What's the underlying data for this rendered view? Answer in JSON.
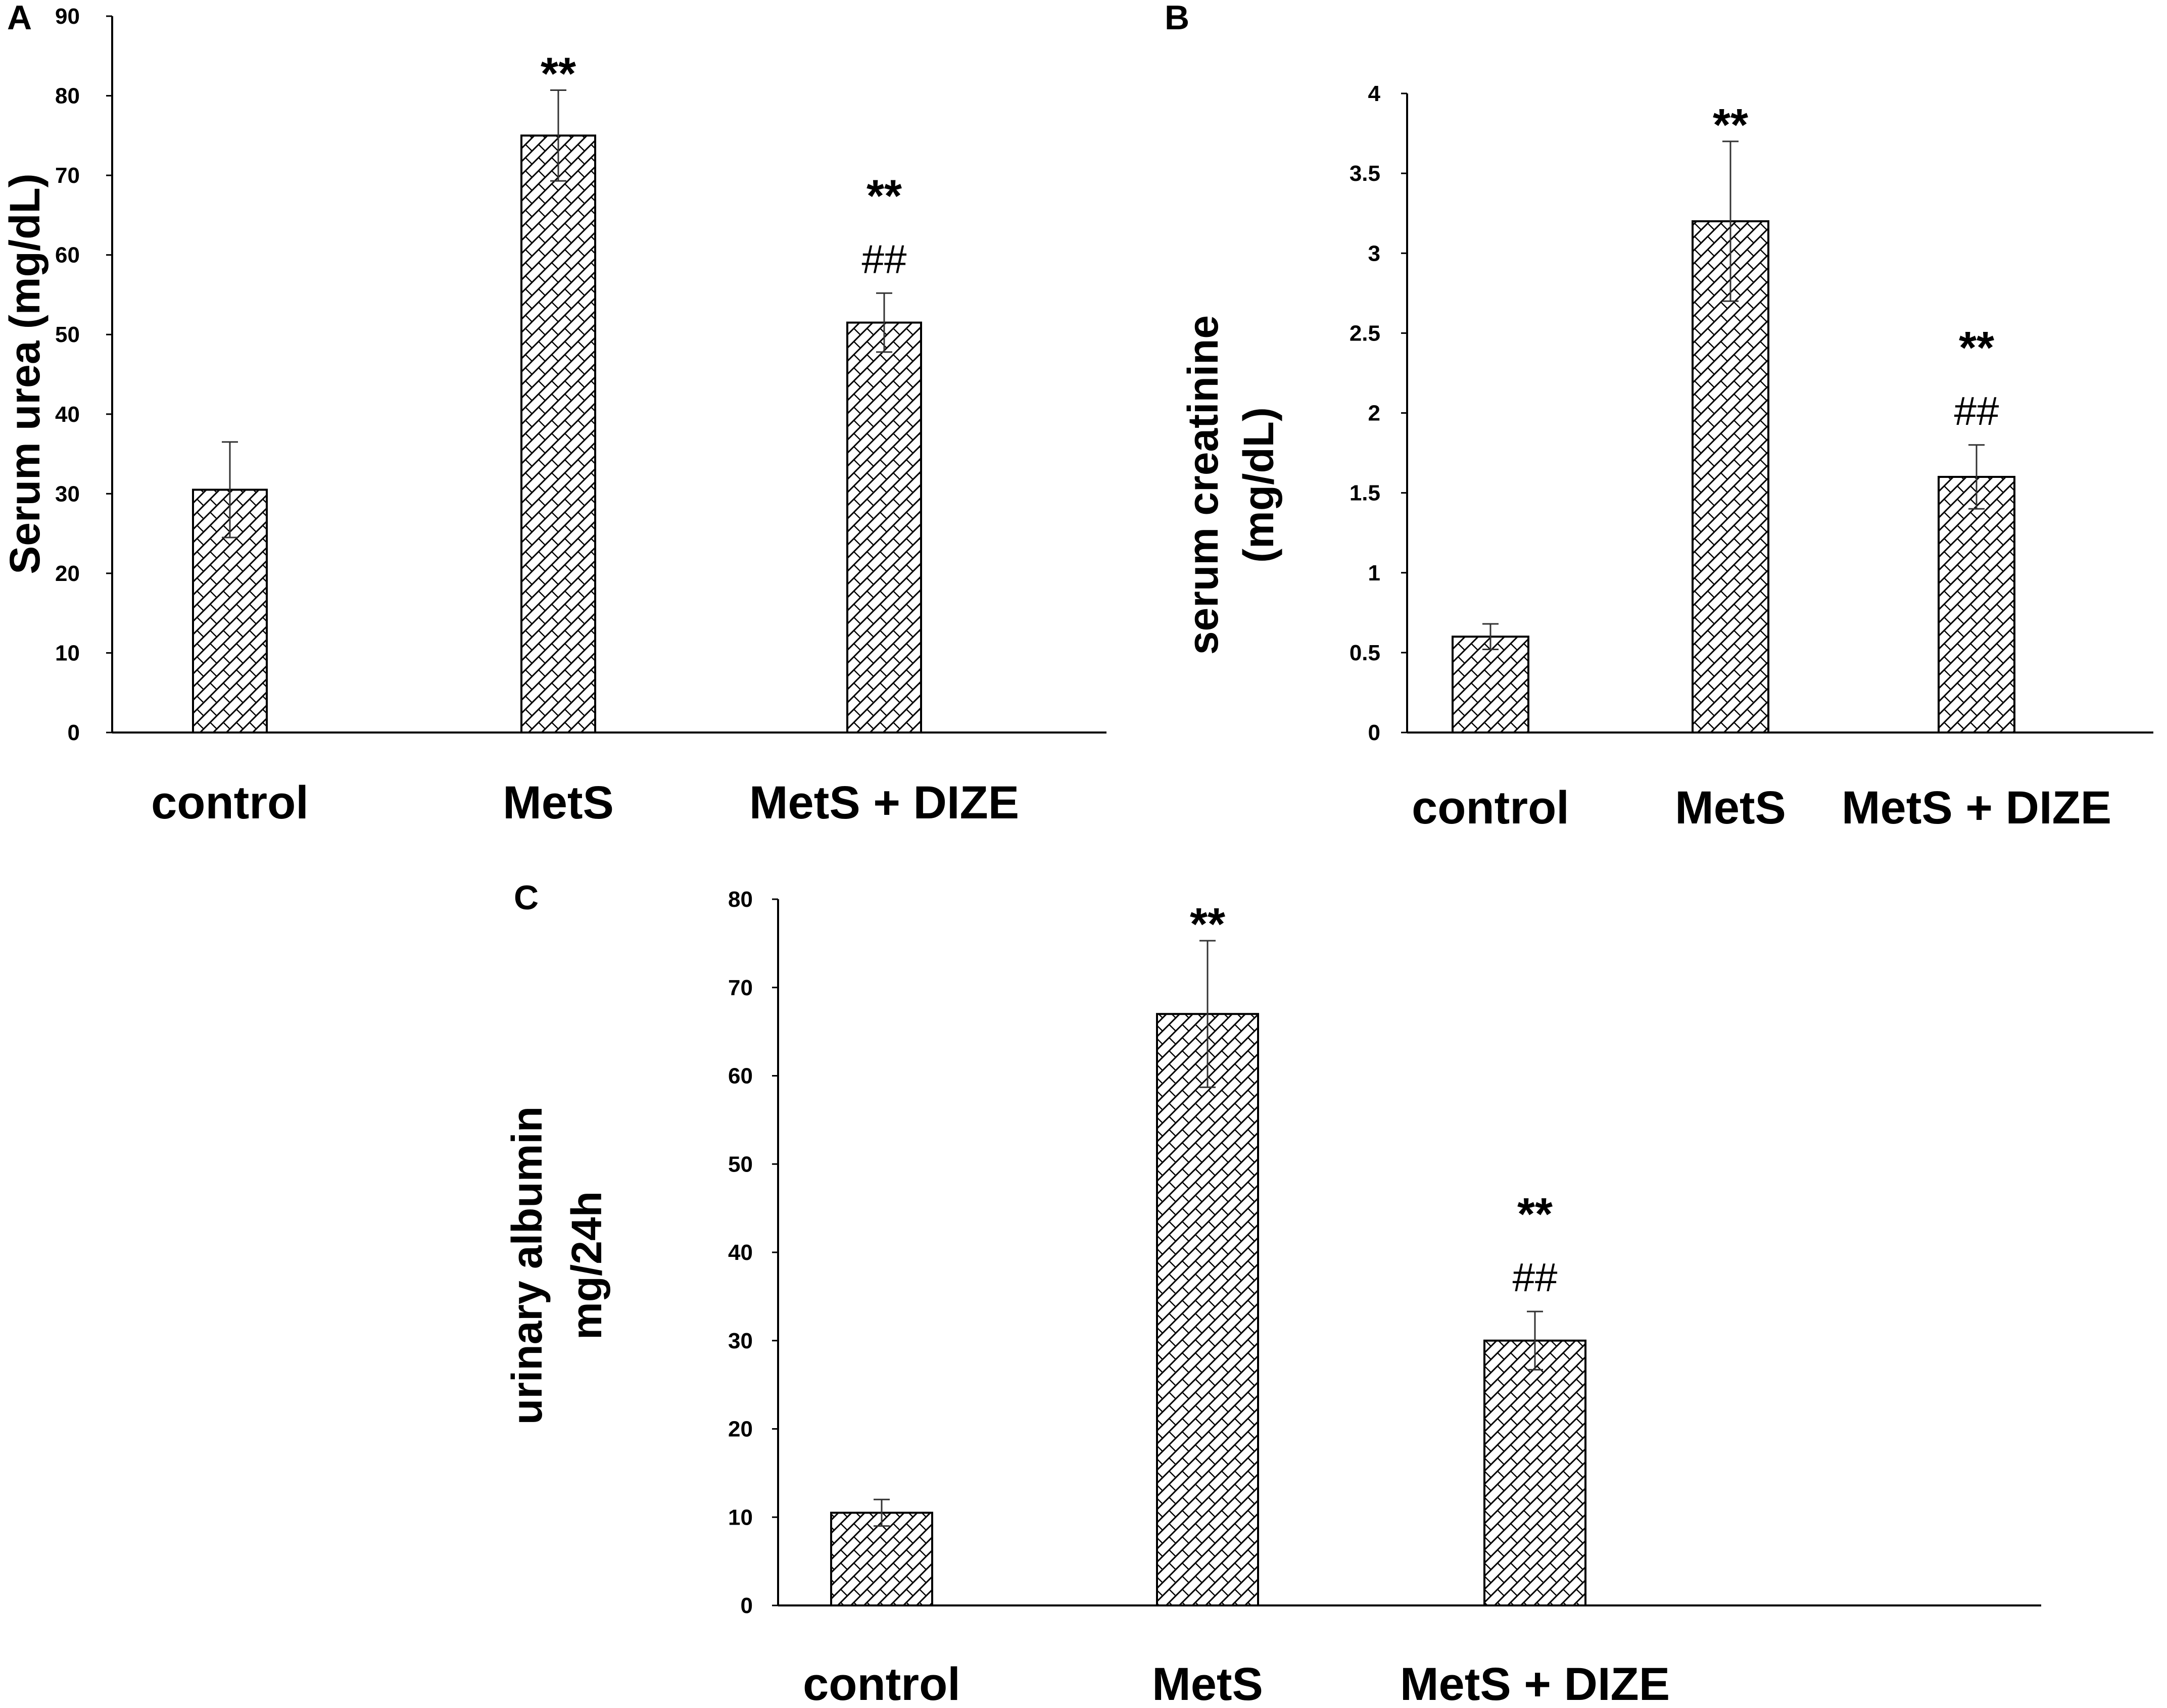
{
  "chart_data": [
    {
      "panel": "A",
      "type": "bar",
      "ylabel": "Serum urea (mg/dL)",
      "ylim": [
        0,
        90
      ],
      "yticks": [
        0,
        10,
        20,
        30,
        40,
        50,
        60,
        70,
        80,
        90
      ],
      "categories": [
        "control",
        "MetS",
        "MetS + DIZE"
      ],
      "values": [
        30.5,
        75,
        51.5
      ],
      "errors": [
        6,
        5.7,
        3.7
      ],
      "annotations": [
        [],
        [
          "**"
        ],
        [
          "**",
          "##"
        ]
      ]
    },
    {
      "panel": "B",
      "type": "bar",
      "ylabel": [
        "serum creatinine",
        "(mg/dL)"
      ],
      "ylim": [
        0,
        4
      ],
      "yticks": [
        "0",
        "0.5",
        "1",
        "1.5",
        "2",
        "2.5",
        "3",
        "3.5",
        "4"
      ],
      "categories": [
        "control",
        "MetS",
        "MetS + DIZE"
      ],
      "values": [
        0.6,
        3.2,
        1.6
      ],
      "errors": [
        0.08,
        0.5,
        0.2
      ],
      "annotations": [
        [],
        [
          "**"
        ],
        [
          "**",
          "##"
        ]
      ]
    },
    {
      "panel": "C",
      "type": "bar",
      "ylabel": [
        "urinary albumin",
        "mg/24h"
      ],
      "ylim": [
        0,
        80
      ],
      "yticks": [
        0,
        10,
        20,
        30,
        40,
        50,
        60,
        70,
        80
      ],
      "categories": [
        "control",
        "MetS",
        "MetS + DIZE"
      ],
      "values": [
        10.5,
        67,
        30
      ],
      "errors": [
        1.5,
        8.3,
        3.3
      ],
      "annotations": [
        [],
        [
          "**"
        ],
        [
          "**",
          "##"
        ]
      ]
    }
  ]
}
